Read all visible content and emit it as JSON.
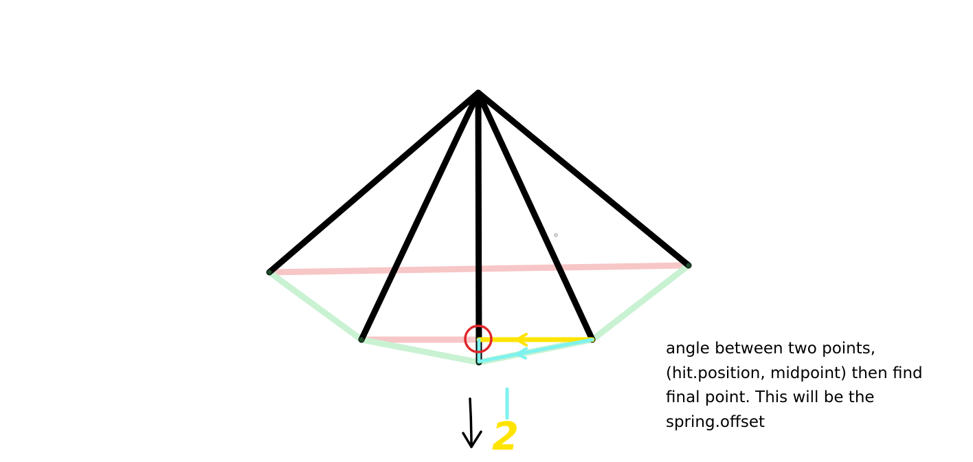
{
  "annotation": {
    "lines": [
      "angle between two points,",
      "(hit.position, midpoint) then find",
      "final point. This will be the",
      "spring.offset"
    ]
  },
  "marker_digit": "2",
  "colors": {
    "spokes": "#000000",
    "chord": "#f7c6c6",
    "rim": "#c9f2d3",
    "yellow": "#ffe400",
    "cyan": "#7ef2ee",
    "hit_circle": "#e0262a"
  }
}
